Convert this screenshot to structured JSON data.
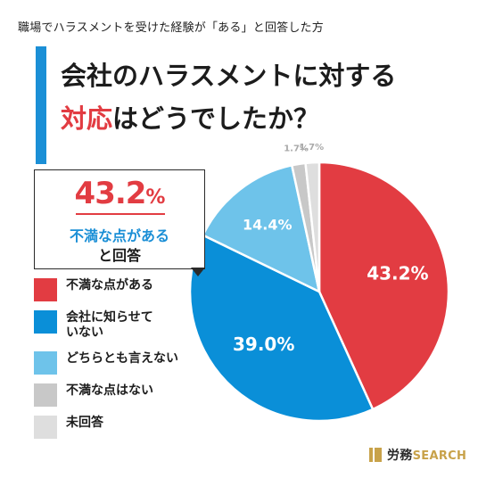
{
  "subtitle": "職場でハラスメントを受けた経験が「ある」と回答した方",
  "title": {
    "line1": "会社のハラスメントに対する",
    "line2_highlight": "対応",
    "line2_rest": "はどうでしたか？"
  },
  "callout": {
    "value": "43.2",
    "unit": "%",
    "line1": "不満な点がある",
    "line2": "と回答"
  },
  "brand": {
    "name": "労務",
    "suffix": "SEARCH"
  },
  "colors": {
    "red": "#e23c42",
    "blue": "#0a8fd8",
    "light_blue": "#6ec3ea",
    "gray": "#c8c8c8",
    "light_gray": "#dedede",
    "accent": "#1b8fd6",
    "brand_gold": "#c8a24a"
  },
  "chart_data": {
    "type": "pie",
    "start": "12 o'clock",
    "direction": "clockwise",
    "unit": "%",
    "categories": [
      "不満な点がある",
      "会社に知らせていない",
      "どちらとも言えない",
      "不満な点はない",
      "未回答"
    ],
    "values": [
      43.2,
      39.0,
      14.4,
      1.7,
      1.7
    ],
    "labels": [
      "43.2%",
      "39.0%",
      "14.4%",
      "1.7%",
      "1.7%"
    ],
    "colors": [
      "#e23c42",
      "#0a8fd8",
      "#6ec3ea",
      "#c8c8c8",
      "#dedede"
    ],
    "legend": {
      "placement": "left",
      "entries": [
        "不満な点がある",
        "会社に知らせて\nいない",
        "どちらとも言えない",
        "不満な点はない",
        "未回答"
      ]
    }
  }
}
